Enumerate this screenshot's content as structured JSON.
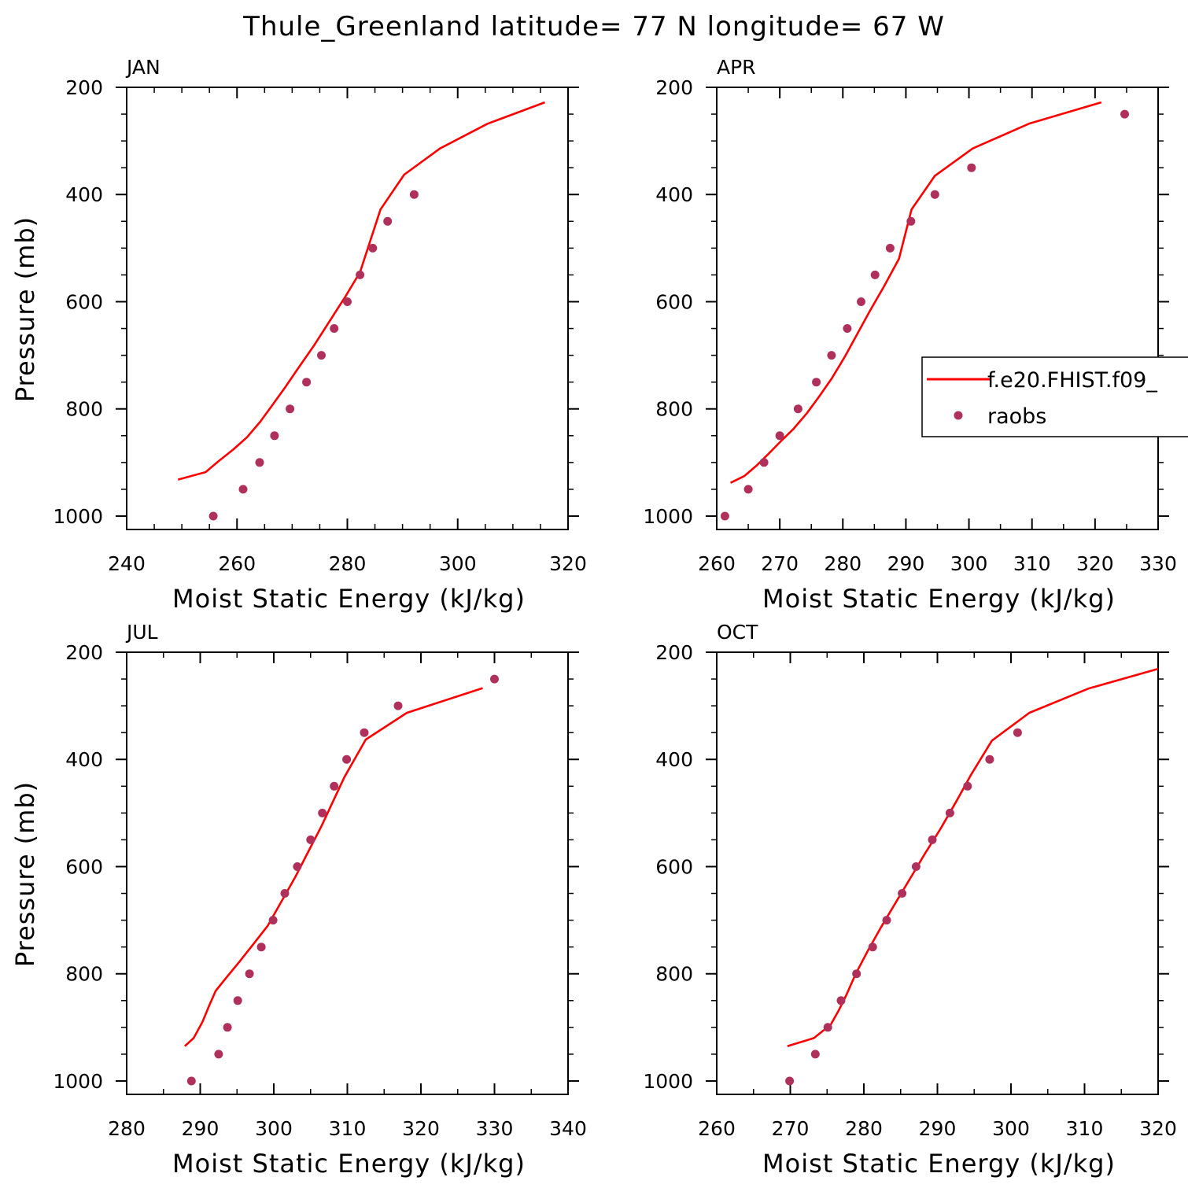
{
  "title": "Thule_Greenland  latitude= 77 N longitude= 67 W",
  "colors": {
    "model": "#ff0000",
    "obs": "#b0305c",
    "axes": "#000000"
  },
  "legend": {
    "model_label": "f.e20.FHIST.f09_",
    "obs_label": "raobs",
    "placement": "inside APR panel, right"
  },
  "chart_data": [
    {
      "type": "line",
      "panel_title": "JAN",
      "xlabel": "Moist Static Energy (kJ/kg)",
      "ylabel": "Pressure (mb)",
      "xlim": [
        240,
        320
      ],
      "ylim": [
        1025,
        200
      ],
      "y_inverted": true,
      "xticks": [
        240,
        260,
        280,
        300,
        320
      ],
      "yticks": [
        200,
        400,
        600,
        800,
        1000
      ],
      "series": [
        {
          "name": "f.e20.FHIST.f09_",
          "kind": "line",
          "x": [
            249.3,
            254.3,
            256.6,
            259.3,
            261.8,
            264.2,
            266.4,
            268.7,
            271.3,
            274.0,
            276.8,
            279.6,
            282.3,
            286.0,
            290.3,
            296.8,
            305.4,
            315.8
          ],
          "y": [
            932,
            918,
            898,
            876,
            853,
            824,
            793,
            760,
            721,
            681,
            636,
            591,
            545,
            428,
            363,
            314,
            268,
            228
          ]
        },
        {
          "name": "raobs",
          "kind": "scatter",
          "x": [
            255.7,
            261.1,
            264.1,
            266.8,
            269.6,
            272.6,
            275.3,
            277.6,
            280.0,
            282.3,
            284.6,
            287.3,
            292.1
          ],
          "y": [
            1000,
            950,
            900,
            850,
            800,
            750,
            700,
            650,
            600,
            550,
            500,
            450,
            400
          ]
        }
      ]
    },
    {
      "type": "line",
      "panel_title": "APR",
      "xlabel": "Moist Static Energy (kJ/kg)",
      "ylabel": "",
      "xlim": [
        260,
        330
      ],
      "ylim": [
        1025,
        200
      ],
      "y_inverted": true,
      "xticks": [
        260,
        270,
        280,
        290,
        300,
        310,
        320,
        330
      ],
      "yticks": [
        200,
        400,
        600,
        800,
        1000
      ],
      "series": [
        {
          "name": "f.e20.FHIST.f09_",
          "kind": "line",
          "x": [
            262.2,
            264.4,
            266.3,
            268.2,
            270.2,
            272.2,
            274.3,
            276.3,
            278.3,
            280.3,
            282.3,
            284.3,
            286.5,
            288.9,
            290.9,
            294.6,
            300.6,
            309.5,
            321.0
          ],
          "y": [
            938,
            925,
            906,
            884,
            860,
            837,
            808,
            776,
            742,
            703,
            660,
            617,
            572,
            520,
            428,
            365,
            314,
            268,
            228
          ]
        },
        {
          "name": "raobs",
          "kind": "scatter",
          "x": [
            261.3,
            265.0,
            267.5,
            270.0,
            272.9,
            275.8,
            278.2,
            280.7,
            282.9,
            285.1,
            287.5,
            290.8,
            294.6,
            300.4,
            324.7
          ],
          "y": [
            1000,
            950,
            900,
            850,
            800,
            750,
            700,
            650,
            600,
            550,
            500,
            450,
            400,
            350,
            250
          ]
        }
      ]
    },
    {
      "type": "line",
      "panel_title": "JUL",
      "xlabel": "Moist Static Energy (kJ/kg)",
      "ylabel": "Pressure (mb)",
      "xlim": [
        280,
        340
      ],
      "ylim": [
        1025,
        200
      ],
      "y_inverted": true,
      "xticks": [
        280,
        290,
        300,
        310,
        320,
        330,
        340
      ],
      "yticks": [
        200,
        400,
        600,
        800,
        1000
      ],
      "series": [
        {
          "name": "f.e20.FHIST.f09_",
          "kind": "line",
          "x": [
            287.9,
            289.1,
            290.3,
            291.2,
            292.1,
            293.5,
            295.3,
            297.2,
            299.2,
            301.0,
            302.9,
            304.7,
            306.5,
            308.1,
            309.6,
            312.5,
            318.1,
            328.4
          ],
          "y": [
            935,
            920,
            890,
            860,
            832,
            808,
            778,
            745,
            710,
            666,
            620,
            572,
            524,
            477,
            433,
            363,
            313,
            267
          ]
        },
        {
          "name": "raobs",
          "kind": "scatter",
          "x": [
            288.8,
            292.5,
            293.7,
            295.1,
            296.7,
            298.3,
            299.9,
            301.5,
            303.2,
            305.0,
            306.6,
            308.2,
            309.9,
            312.3,
            316.9,
            330.0
          ],
          "y": [
            1000,
            950,
            900,
            850,
            800,
            750,
            700,
            650,
            600,
            550,
            500,
            450,
            400,
            350,
            300,
            250
          ]
        }
      ]
    },
    {
      "type": "line",
      "panel_title": "OCT",
      "xlabel": "Moist Static Energy (kJ/kg)",
      "ylabel": "",
      "xlim": [
        260,
        320
      ],
      "ylim": [
        1025,
        200
      ],
      "y_inverted": true,
      "xticks": [
        260,
        270,
        280,
        290,
        300,
        310,
        320
      ],
      "yticks": [
        200,
        400,
        600,
        800,
        1000
      ],
      "series": [
        {
          "name": "f.e20.FHIST.f09_",
          "kind": "line",
          "x": [
            269.6,
            273.2,
            275.5,
            276.6,
            277.6,
            278.9,
            280.5,
            282.3,
            284.2,
            286.3,
            288.3,
            290.4,
            292.5,
            294.6,
            297.4,
            302.5,
            310.5,
            320.0
          ],
          "y": [
            935,
            920,
            895,
            868,
            840,
            800,
            758,
            714,
            670,
            622,
            576,
            530,
            480,
            428,
            365,
            313,
            268,
            231
          ]
        },
        {
          "name": "raobs",
          "kind": "scatter",
          "x": [
            269.9,
            273.4,
            275.1,
            276.9,
            279.0,
            281.2,
            283.1,
            285.2,
            287.1,
            289.3,
            291.7,
            294.1,
            297.1,
            300.9
          ],
          "y": [
            1000,
            950,
            900,
            850,
            800,
            750,
            700,
            650,
            600,
            550,
            500,
            450,
            400,
            350
          ]
        }
      ]
    }
  ]
}
